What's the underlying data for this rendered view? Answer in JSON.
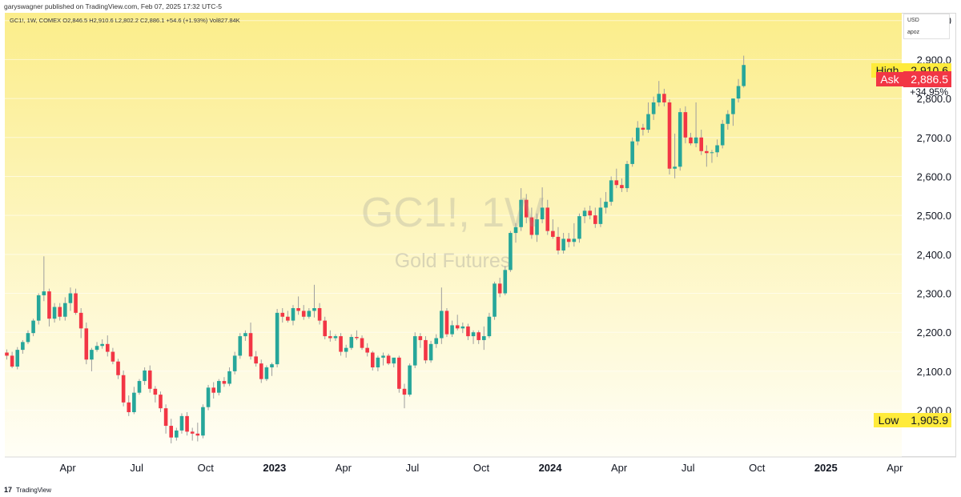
{
  "header": {
    "published_text": "garyswagner published on TradingView.com, Feb 07, 2025 17:32 UTC-5"
  },
  "quote": {
    "line": "GC1!, 1W, COMEX  O2,846.5  H2,910.6  L2,802.2  C2,886.1  +54.6 (+1.93%)  Vol827.84K"
  },
  "watermark": {
    "symbol": "GC1!, 1W",
    "name": "Gold Futures"
  },
  "currency": {
    "label": "USD",
    "unit": "apoz"
  },
  "price_tags": {
    "high_label": "High",
    "high_value": "2,910.6",
    "ask_label": "Ask",
    "ask_value": "2,886.5",
    "pct_change": "+34.95%",
    "low_label": "Low",
    "low_value": "1,905.9"
  },
  "footer": {
    "logo": "17",
    "brand": "TradingView"
  },
  "colors": {
    "up": "#26a69a",
    "down": "#f23645",
    "wick": "#9e9e9e",
    "bg_top": "#fbed8a",
    "bg_bottom": "#fffef6",
    "high_tag": "#ffeb3b",
    "ask_tag": "#f23645",
    "low_tag": "#ffeb3b"
  },
  "chart_data": {
    "type": "candlestick",
    "interval": "1W",
    "ylim": [
      1880,
      3020
    ],
    "y_ticks": [
      2000,
      2100,
      2200,
      2300,
      2400,
      2500,
      2600,
      2700,
      2800,
      2900,
      3000
    ],
    "y_tick_labels": [
      "2,000.0",
      "2,100.0",
      "2,200.0",
      "2,300.0",
      "2,400.0",
      "2,500.0",
      "2,600.0",
      "2,700.0",
      "2,800.0",
      "2,900.0",
      "3,000.0"
    ],
    "x_ticks": [
      {
        "label": "Apr",
        "bold": false,
        "index": 11.5
      },
      {
        "label": "Jul",
        "bold": false,
        "index": 24.5
      },
      {
        "label": "Oct",
        "bold": false,
        "index": 37.5
      },
      {
        "label": "2023",
        "bold": true,
        "index": 50.5
      },
      {
        "label": "Apr",
        "bold": false,
        "index": 63.5
      },
      {
        "label": "Jul",
        "bold": false,
        "index": 76.5
      },
      {
        "label": "Oct",
        "bold": false,
        "index": 89.5
      },
      {
        "label": "2024",
        "bold": true,
        "index": 102.5
      },
      {
        "label": "Apr",
        "bold": false,
        "index": 115.5
      },
      {
        "label": "Jul",
        "bold": false,
        "index": 128.5
      },
      {
        "label": "Oct",
        "bold": false,
        "index": 141.5
      },
      {
        "label": "2025",
        "bold": true,
        "index": 154.5
      },
      {
        "label": "Apr",
        "bold": false,
        "index": 167.5
      }
    ],
    "candles": [
      [
        2148,
        2156,
        2130,
        2140
      ],
      [
        2140,
        2150,
        2108,
        2112
      ],
      [
        2112,
        2162,
        2105,
        2155
      ],
      [
        2155,
        2180,
        2145,
        2175
      ],
      [
        2175,
        2205,
        2170,
        2198
      ],
      [
        2198,
        2235,
        2190,
        2230
      ],
      [
        2230,
        2300,
        2220,
        2295
      ],
      [
        2295,
        2395,
        2280,
        2305
      ],
      [
        2305,
        2312,
        2215,
        2235
      ],
      [
        2235,
        2275,
        2225,
        2265
      ],
      [
        2265,
        2275,
        2230,
        2240
      ],
      [
        2240,
        2290,
        2230,
        2275
      ],
      [
        2275,
        2315,
        2255,
        2300
      ],
      [
        2300,
        2312,
        2245,
        2250
      ],
      [
        2250,
        2262,
        2185,
        2210
      ],
      [
        2210,
        2225,
        2118,
        2130
      ],
      [
        2130,
        2160,
        2100,
        2155
      ],
      [
        2155,
        2175,
        2150,
        2165
      ],
      [
        2165,
        2182,
        2158,
        2170
      ],
      [
        2170,
        2192,
        2138,
        2150
      ],
      [
        2150,
        2160,
        2118,
        2125
      ],
      [
        2125,
        2132,
        2080,
        2090
      ],
      [
        2090,
        2102,
        2010,
        2020
      ],
      [
        2020,
        2038,
        1985,
        1995
      ],
      [
        1995,
        2060,
        1990,
        2045
      ],
      [
        2045,
        2080,
        2040,
        2075
      ],
      [
        2075,
        2110,
        2065,
        2102
      ],
      [
        2102,
        2115,
        2045,
        2055
      ],
      [
        2055,
        2062,
        2020,
        2040
      ],
      [
        2040,
        2048,
        1995,
        2005
      ],
      [
        2005,
        2015,
        1940,
        1960
      ],
      [
        1960,
        1978,
        1915,
        1930
      ],
      [
        1930,
        1955,
        1922,
        1948
      ],
      [
        1948,
        1992,
        1940,
        1985
      ],
      [
        1985,
        1995,
        1935,
        1945
      ],
      [
        1945,
        1955,
        1922,
        1940
      ],
      [
        1940,
        1968,
        1920,
        1935
      ],
      [
        1935,
        2015,
        1928,
        2008
      ],
      [
        2008,
        2065,
        2000,
        2058
      ],
      [
        2058,
        2072,
        2030,
        2045
      ],
      [
        2045,
        2080,
        2038,
        2075
      ],
      [
        2075,
        2085,
        2060,
        2068
      ],
      [
        2068,
        2110,
        2062,
        2100
      ],
      [
        2100,
        2150,
        2092,
        2140
      ],
      [
        2140,
        2198,
        2132,
        2190
      ],
      [
        2190,
        2205,
        2178,
        2198
      ],
      [
        2198,
        2225,
        2130,
        2138
      ],
      [
        2138,
        2152,
        2112,
        2120
      ],
      [
        2120,
        2130,
        2070,
        2080
      ],
      [
        2080,
        2115,
        2075,
        2110
      ],
      [
        2110,
        2122,
        2088,
        2118
      ],
      [
        2118,
        2260,
        2110,
        2250
      ],
      [
        2250,
        2262,
        2225,
        2240
      ],
      [
        2240,
        2255,
        2225,
        2230
      ],
      [
        2230,
        2270,
        2218,
        2262
      ],
      [
        2262,
        2292,
        2245,
        2255
      ],
      [
        2255,
        2270,
        2232,
        2240
      ],
      [
        2240,
        2262,
        2235,
        2255
      ],
      [
        2255,
        2322,
        2238,
        2262
      ],
      [
        2262,
        2275,
        2220,
        2230
      ],
      [
        2230,
        2240,
        2182,
        2190
      ],
      [
        2190,
        2205,
        2176,
        2185
      ],
      [
        2185,
        2195,
        2178,
        2190
      ],
      [
        2190,
        2198,
        2140,
        2150
      ],
      [
        2150,
        2168,
        2135,
        2160
      ],
      [
        2160,
        2195,
        2155,
        2188
      ],
      [
        2188,
        2205,
        2180,
        2185
      ],
      [
        2185,
        2192,
        2155,
        2160
      ],
      [
        2160,
        2172,
        2138,
        2148
      ],
      [
        2148,
        2152,
        2102,
        2110
      ],
      [
        2110,
        2140,
        2100,
        2135
      ],
      [
        2135,
        2148,
        2115,
        2140
      ],
      [
        2140,
        2145,
        2116,
        2120
      ],
      [
        2120,
        2132,
        2110,
        2135
      ],
      [
        2135,
        2140,
        2045,
        2055
      ],
      [
        2055,
        2068,
        2005,
        2040
      ],
      [
        2040,
        2120,
        2035,
        2115
      ],
      [
        2115,
        2200,
        2108,
        2190
      ],
      [
        2190,
        2198,
        2160,
        2180
      ],
      [
        2180,
        2190,
        2120,
        2128
      ],
      [
        2128,
        2178,
        2122,
        2170
      ],
      [
        2170,
        2195,
        2160,
        2185
      ],
      [
        2185,
        2315,
        2170,
        2255
      ],
      [
        2255,
        2262,
        2188,
        2195
      ],
      [
        2195,
        2230,
        2188,
        2218
      ],
      [
        2218,
        2245,
        2205,
        2210
      ],
      [
        2210,
        2225,
        2198,
        2215
      ],
      [
        2215,
        2222,
        2180,
        2190
      ],
      [
        2190,
        2205,
        2170,
        2200
      ],
      [
        2200,
        2205,
        2170,
        2180
      ],
      [
        2180,
        2215,
        2155,
        2190
      ],
      [
        2190,
        2250,
        2185,
        2240
      ],
      [
        2240,
        2330,
        2232,
        2325
      ],
      [
        2325,
        2340,
        2290,
        2300
      ],
      [
        2300,
        2370,
        2295,
        2360
      ],
      [
        2360,
        2460,
        2355,
        2455
      ],
      [
        2455,
        2480,
        2430,
        2470
      ],
      [
        2470,
        2570,
        2460,
        2540
      ],
      [
        2540,
        2555,
        2480,
        2495
      ],
      [
        2495,
        2520,
        2440,
        2450
      ],
      [
        2450,
        2505,
        2432,
        2490
      ],
      [
        2490,
        2572,
        2480,
        2520
      ],
      [
        2520,
        2540,
        2450,
        2460
      ],
      [
        2460,
        2490,
        2440,
        2445
      ],
      [
        2445,
        2470,
        2400,
        2410
      ],
      [
        2410,
        2455,
        2402,
        2440
      ],
      [
        2440,
        2455,
        2418,
        2432
      ],
      [
        2432,
        2480,
        2420,
        2440
      ],
      [
        2440,
        2505,
        2430,
        2498
      ],
      [
        2498,
        2520,
        2480,
        2512
      ],
      [
        2512,
        2525,
        2490,
        2500
      ],
      [
        2500,
        2520,
        2468,
        2478
      ],
      [
        2478,
        2545,
        2470,
        2520
      ],
      [
        2520,
        2560,
        2505,
        2535
      ],
      [
        2535,
        2600,
        2525,
        2590
      ],
      [
        2590,
        2620,
        2570,
        2578
      ],
      [
        2578,
        2595,
        2560,
        2570
      ],
      [
        2570,
        2640,
        2560,
        2632
      ],
      [
        2632,
        2700,
        2625,
        2690
      ],
      [
        2690,
        2742,
        2680,
        2725
      ],
      [
        2725,
        2735,
        2705,
        2720
      ],
      [
        2720,
        2790,
        2712,
        2760
      ],
      [
        2760,
        2805,
        2745,
        2790
      ],
      [
        2790,
        2845,
        2780,
        2812
      ],
      [
        2812,
        2825,
        2780,
        2790
      ],
      [
        2790,
        2798,
        2605,
        2620
      ],
      [
        2620,
        2710,
        2595,
        2625
      ],
      [
        2625,
        2775,
        2615,
        2765
      ],
      [
        2765,
        2780,
        2685,
        2700
      ],
      [
        2700,
        2712,
        2680,
        2685
      ],
      [
        2685,
        2790,
        2675,
        2700
      ],
      [
        2700,
        2720,
        2655,
        2665
      ],
      [
        2665,
        2680,
        2625,
        2660
      ],
      [
        2660,
        2668,
        2635,
        2662
      ],
      [
        2662,
        2695,
        2650,
        2680
      ],
      [
        2680,
        2745,
        2672,
        2735
      ],
      [
        2735,
        2770,
        2720,
        2760
      ],
      [
        2760,
        2795,
        2730,
        2800
      ],
      [
        2800,
        2850,
        2790,
        2832
      ],
      [
        2832,
        2910,
        2828,
        2886
      ]
    ]
  }
}
